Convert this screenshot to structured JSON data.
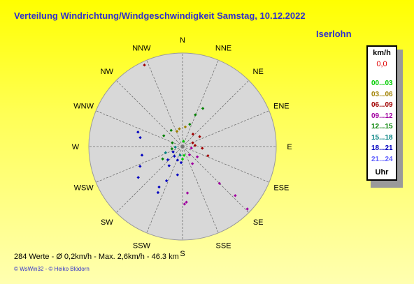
{
  "header": {
    "title": "Verteilung Windrichtung/Windgeschwindigkeit  Samstag, 10.12.2022",
    "location": "Iserlohn"
  },
  "legend": {
    "unit": "km/h",
    "calm": "0,0",
    "calm_color": "#e00000",
    "ranges": [
      {
        "label": "00...03",
        "color": "#00cc00"
      },
      {
        "label": "03...06",
        "color": "#a08000"
      },
      {
        "label": "06...09",
        "color": "#a00000"
      },
      {
        "label": "09...12",
        "color": "#a000a0"
      },
      {
        "label": "12...15",
        "color": "#008000"
      },
      {
        "label": "15...18",
        "color": "#008080"
      },
      {
        "label": "18...21",
        "color": "#0000c0"
      },
      {
        "label": "21...24",
        "color": "#6060ff"
      }
    ],
    "footer": "Uhr"
  },
  "footer": {
    "stats": "284 Werte   -   Ø 0,2km/h  -  Max. 2,6km/h  -   46.3 km",
    "credit": "© WsWin32   -   © Heiko Blödorn"
  },
  "colors": {
    "background_top": "#ffff00",
    "plot_fill": "#d8d8d8",
    "title": "#3030cc"
  },
  "chart_data": {
    "type": "scatter",
    "subtype": "wind-rose",
    "directions": [
      "N",
      "NNE",
      "NE",
      "ENE",
      "E",
      "ESE",
      "SE",
      "SSE",
      "S",
      "SSW",
      "SW",
      "WSW",
      "W",
      "WNW",
      "NW",
      "NNW"
    ],
    "angle_unit": "degrees clockwise from north",
    "radial_axis": "wind speed (km/h)",
    "rmax": 2.6,
    "grid": true,
    "points": [
      {
        "angle": 335,
        "r": 2.5,
        "color": "#a00000"
      },
      {
        "angle": 28,
        "r": 1.2,
        "color": "#008000"
      },
      {
        "angle": 22,
        "r": 0.95,
        "color": "#008000"
      },
      {
        "angle": 18,
        "r": 0.65,
        "color": "#008000"
      },
      {
        "angle": 8,
        "r": 0.55,
        "color": "#a08000"
      },
      {
        "angle": 350,
        "r": 0.5,
        "color": "#a08000"
      },
      {
        "angle": 340,
        "r": 0.45,
        "color": "#a08000"
      },
      {
        "angle": 325,
        "r": 0.55,
        "color": "#008000"
      },
      {
        "angle": 300,
        "r": 0.6,
        "color": "#008000"
      },
      {
        "angle": 40,
        "r": 0.45,
        "color": "#a00000"
      },
      {
        "angle": 60,
        "r": 0.55,
        "color": "#a00000"
      },
      {
        "angle": 70,
        "r": 0.3,
        "color": "#a00000"
      },
      {
        "angle": 85,
        "r": 0.35,
        "color": "#a00000"
      },
      {
        "angle": 95,
        "r": 0.55,
        "color": "#a00000"
      },
      {
        "angle": 110,
        "r": 0.75,
        "color": "#a00000"
      },
      {
        "angle": 100,
        "r": 0.25,
        "color": "#a000a0"
      },
      {
        "angle": 125,
        "r": 0.5,
        "color": "#a000a0"
      },
      {
        "angle": 140,
        "r": 0.3,
        "color": "#a000a0"
      },
      {
        "angle": 150,
        "r": 0.55,
        "color": "#a000a0"
      },
      {
        "angle": 135,
        "r": 1.45,
        "color": "#a000a0"
      },
      {
        "angle": 133,
        "r": 2.0,
        "color": "#a000a0"
      },
      {
        "angle": 134,
        "r": 2.5,
        "color": "#a000a0"
      },
      {
        "angle": 174,
        "r": 1.3,
        "color": "#a000a0"
      },
      {
        "angle": 176,
        "r": 1.55,
        "color": "#a000a0"
      },
      {
        "angle": 178,
        "r": 1.6,
        "color": "#a000a0"
      },
      {
        "angle": 185,
        "r": 0.45,
        "color": "#0000c0"
      },
      {
        "angle": 190,
        "r": 0.8,
        "color": "#0000c0"
      },
      {
        "angle": 200,
        "r": 0.4,
        "color": "#0000c0"
      },
      {
        "angle": 205,
        "r": 1.05,
        "color": "#0000c0"
      },
      {
        "angle": 210,
        "r": 1.3,
        "color": "#0000c0"
      },
      {
        "angle": 208,
        "r": 1.45,
        "color": "#0000c0"
      },
      {
        "angle": 215,
        "r": 0.65,
        "color": "#0000c0"
      },
      {
        "angle": 220,
        "r": 0.35,
        "color": "#0000c0"
      },
      {
        "angle": 228,
        "r": 0.55,
        "color": "#0000c0"
      },
      {
        "angle": 240,
        "r": 0.3,
        "color": "#0000c0"
      },
      {
        "angle": 235,
        "r": 1.5,
        "color": "#0000c0"
      },
      {
        "angle": 245,
        "r": 1.3,
        "color": "#0000c0"
      },
      {
        "angle": 258,
        "r": 1.15,
        "color": "#0000c0"
      },
      {
        "angle": 282,
        "r": 1.2,
        "color": "#0000c0"
      },
      {
        "angle": 288,
        "r": 1.3,
        "color": "#0000c0"
      },
      {
        "angle": 250,
        "r": 0.5,
        "color": "#008080"
      },
      {
        "angle": 265,
        "r": 0.2,
        "color": "#008080"
      },
      {
        "angle": 195,
        "r": 0.25,
        "color": "#008080"
      },
      {
        "angle": 238,
        "r": 0.65,
        "color": "#008000"
      },
      {
        "angle": 258,
        "r": 0.3,
        "color": "#008000"
      },
      {
        "angle": 290,
        "r": 0.3,
        "color": "#008000"
      },
      {
        "angle": 180,
        "r": 0.35,
        "color": "#00cc00"
      },
      {
        "angle": 170,
        "r": 0.25,
        "color": "#00cc00"
      },
      {
        "angle": 10,
        "r": 0.15,
        "color": "#00cc00"
      }
    ]
  }
}
